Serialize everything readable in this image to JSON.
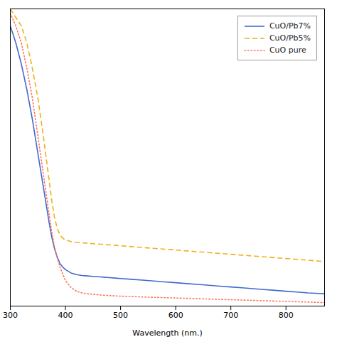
{
  "chart_data": {
    "type": "line",
    "xlabel": "Wavelength (nm.)",
    "xlim": [
      300,
      870
    ],
    "ylim": [
      0,
      3.5
    ],
    "xticks": [
      300,
      400,
      500,
      600,
      700,
      800
    ],
    "tick_labels": "x",
    "grid": false,
    "legend": "upper right",
    "x": [
      300,
      310,
      320,
      330,
      340,
      350,
      360,
      370,
      375,
      380,
      385,
      390,
      395,
      400,
      410,
      420,
      430,
      440,
      450,
      460,
      470,
      480,
      490,
      500,
      520,
      540,
      560,
      580,
      600,
      620,
      640,
      660,
      680,
      700,
      720,
      740,
      760,
      780,
      800,
      820,
      840,
      860,
      870
    ],
    "series": [
      {
        "name": "CuO/Pb7%",
        "line_style": "solid",
        "values": [
          3.3,
          3.1,
          2.85,
          2.55,
          2.2,
          1.8,
          1.4,
          1.0,
          0.82,
          0.68,
          0.58,
          0.5,
          0.46,
          0.43,
          0.39,
          0.37,
          0.36,
          0.355,
          0.35,
          0.345,
          0.34,
          0.335,
          0.33,
          0.325,
          0.315,
          0.305,
          0.295,
          0.285,
          0.275,
          0.265,
          0.255,
          0.245,
          0.235,
          0.225,
          0.215,
          0.205,
          0.195,
          0.185,
          0.175,
          0.165,
          0.155,
          0.148,
          0.145
        ]
      },
      {
        "name": "CuO/Pb5%",
        "line_style": "dashed",
        "values": [
          3.5,
          3.4,
          3.3,
          3.1,
          2.8,
          2.45,
          2.0,
          1.5,
          1.25,
          1.05,
          0.92,
          0.84,
          0.8,
          0.78,
          0.76,
          0.75,
          0.745,
          0.74,
          0.735,
          0.73,
          0.725,
          0.72,
          0.715,
          0.71,
          0.7,
          0.69,
          0.68,
          0.67,
          0.66,
          0.65,
          0.64,
          0.63,
          0.62,
          0.61,
          0.6,
          0.59,
          0.58,
          0.57,
          0.56,
          0.55,
          0.54,
          0.53,
          0.525
        ]
      },
      {
        "name": "CuO pure",
        "line_style": "dotted",
        "values": [
          3.45,
          3.3,
          3.1,
          2.8,
          2.45,
          2.0,
          1.55,
          1.1,
          0.88,
          0.7,
          0.57,
          0.46,
          0.38,
          0.3,
          0.22,
          0.175,
          0.155,
          0.145,
          0.138,
          0.132,
          0.127,
          0.123,
          0.12,
          0.117,
          0.112,
          0.107,
          0.103,
          0.099,
          0.095,
          0.091,
          0.087,
          0.083,
          0.079,
          0.075,
          0.071,
          0.067,
          0.063,
          0.059,
          0.055,
          0.051,
          0.047,
          0.043,
          0.041
        ]
      }
    ]
  }
}
